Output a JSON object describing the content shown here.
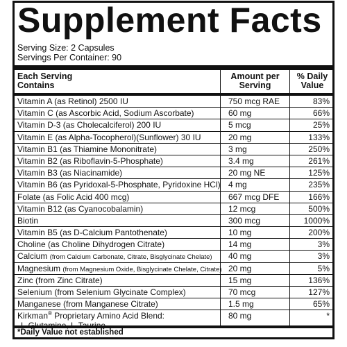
{
  "title": "Supplement Facts",
  "serving_size": "Serving Size: 2 Capsules",
  "servings_per_container": "Servings Per Container: 90",
  "headers": {
    "col1_line1": "Each Serving",
    "col1_line2": "Contains",
    "col2_line1": "Amount per",
    "col2_line2": "Serving",
    "col3_line1": "% Daily",
    "col3_line2": "Value"
  },
  "rows": [
    {
      "name": "Vitamin A (as Retinol) 2500 IU",
      "detail": "",
      "amount": "750 mcg RAE",
      "dv": "83%"
    },
    {
      "name": "Vitamin C (as Ascorbic Acid, Sodium Ascorbate)",
      "detail": "",
      "amount": "60 mg",
      "dv": "66%"
    },
    {
      "name": "Vitamin D-3 (as Cholecalciferol) 200 IU",
      "detail": "",
      "amount": "5 mcg",
      "dv": "25%"
    },
    {
      "name": "Vitamin E (as Alpha-Tocopherol)(Sunflower) 30 IU",
      "detail": "",
      "amount": "20 mg",
      "dv": "133%"
    },
    {
      "name": "Vitamin B1 (as Thiamine Mononitrate)",
      "detail": "",
      "amount": "3 mg",
      "dv": "250%"
    },
    {
      "name": "Vitamin B2 (as Riboflavin-5-Phosphate)",
      "detail": "",
      "amount": "3.4 mg",
      "dv": "261%"
    },
    {
      "name": "Vitamin B3 (as Niacinamide)",
      "detail": "",
      "amount": "20 mg NE",
      "dv": "125%"
    },
    {
      "name": "Vitamin B6 (as Pyridoxal-5-Phosphate, Pyridoxine HCl)",
      "detail": "",
      "amount": "4 mg",
      "dv": "235%"
    },
    {
      "name": "Folate (as Folic Acid 400 mcg)",
      "detail": "",
      "amount": "667 mcg DFE",
      "dv": "166%"
    },
    {
      "name": "Vitamin B12 (as Cyanocobalamin)",
      "detail": "",
      "amount": "12 mcg",
      "dv": "500%"
    },
    {
      "name": "Biotin",
      "detail": "",
      "amount": "300 mcg",
      "dv": "1000%"
    },
    {
      "name": "Vitamin B5 (as D-Calcium Pantothenate)",
      "detail": "",
      "amount": "10 mg",
      "dv": "200%"
    },
    {
      "name": "Choline (as Choline Dihydrogen Citrate)",
      "detail": "",
      "amount": "14 mg",
      "dv": "3%"
    },
    {
      "name": "Calcium ",
      "detail": "(from Calcium Carbonate, Citrate, Bisglycinate Chelate)",
      "amount": "40 mg",
      "dv": "3%"
    },
    {
      "name": "Magnesium ",
      "detail": "(from Magnesium Oxide, Bisglycinate Chelate, Citrate)",
      "amount": "20 mg",
      "dv": "5%"
    },
    {
      "name": "Zinc (from Zinc Citrate)",
      "detail": "",
      "amount": "15 mg",
      "dv": "136%"
    },
    {
      "name": "Selenium (from Selenium Glycinate Complex)",
      "detail": "",
      "amount": "70 mcg",
      "dv": "127%"
    },
    {
      "name": "Manganese (from Manganese Citrate)",
      "detail": "",
      "amount": "1.5 mg",
      "dv": "65%"
    }
  ],
  "blend": {
    "name": "Kirkman",
    "reg": "®",
    "name_rest": " Proprietary Amino Acid Blend:",
    "ingredients": "L-Glutamine, L-Taurine",
    "amount": "80 mg",
    "dv": "*"
  },
  "footnote": "*Daily Value not established"
}
